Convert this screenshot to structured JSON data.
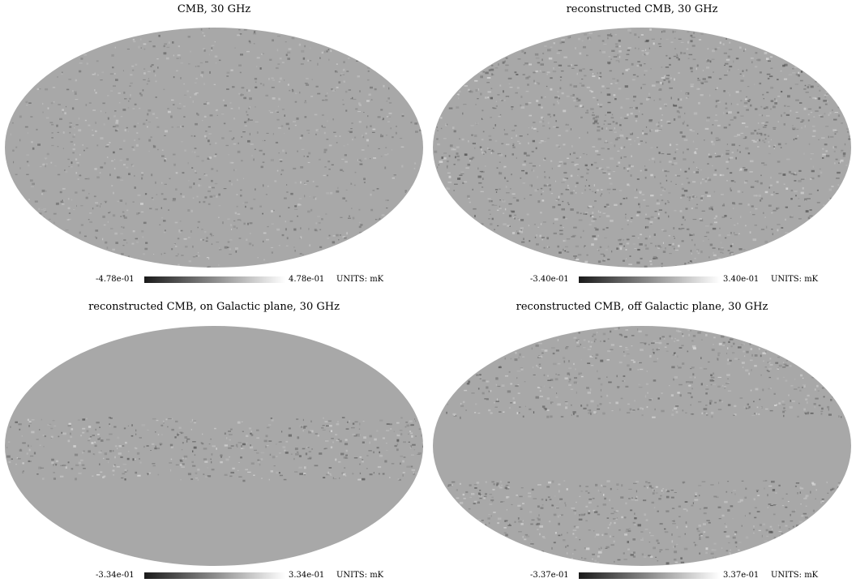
{
  "panels": [
    {
      "title": "CMB, 30 GHz",
      "colorbar": {
        "min": "-4.78e-01",
        "max": "4.78e-01",
        "units": "UNITS: mK"
      },
      "mask": "none",
      "anisotropy_level": 0.55
    },
    {
      "title": "reconstructed CMB, 30 GHz",
      "colorbar": {
        "min": "-3.40e-01",
        "max": "3.40e-01",
        "units": "UNITS: mK"
      },
      "mask": "none",
      "anisotropy_level": 0.85
    },
    {
      "title": "reconstructed CMB, on Galactic plane, 30 GHz",
      "colorbar": {
        "min": "-3.34e-01",
        "max": "3.34e-01",
        "units": "UNITS: mK"
      },
      "mask": "outside-band",
      "anisotropy_level": 0.85
    },
    {
      "title": "reconstructed CMB, off Galactic plane, 30 GHz",
      "colorbar": {
        "min": "-3.37e-01",
        "max": "3.37e-01",
        "units": "UNITS: mK"
      },
      "mask": "band",
      "anisotropy_level": 0.85
    }
  ],
  "colors": {
    "map_base": "#a8a8a8",
    "colorbar_low": "#1a1a1a",
    "colorbar_high": "#ffffff"
  }
}
